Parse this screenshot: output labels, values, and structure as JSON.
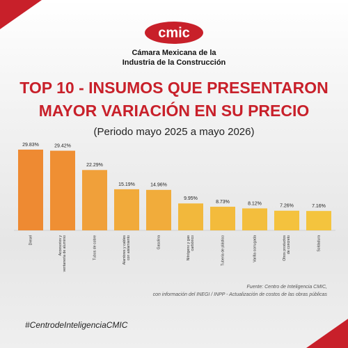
{
  "header": {
    "org_line1": "Cámara Mexicana de la",
    "org_line2": "Industria de la Construcción",
    "logo": "cmic"
  },
  "chart_data": {
    "type": "bar",
    "title_line1": "TOP 10 - INSUMOS QUE PRESENTARON",
    "title_line2": "MAYOR VARIACIÓN EN SU PRECIO",
    "subtitle": "(Periodo mayo 2025 a mayo 2026)",
    "categories": [
      "Diesel",
      "Accesorios y ventanería de aluminio",
      "Tubos de cobre",
      "Alambres y cables con aislamiento",
      "Gasolina",
      "Nitrógeno y gas carbónico",
      "Tubería de plástico",
      "Varilla corrugada",
      "Otros productos de concreto",
      "Soldadura"
    ],
    "values": [
      29.83,
      29.42,
      22.29,
      15.19,
      14.96,
      9.95,
      8.73,
      8.12,
      7.26,
      7.16
    ],
    "value_labels": [
      "29.83%",
      "29.42%",
      "22.29%",
      "15.19%",
      "14.96%",
      "9.95%",
      "8.73%",
      "8.12%",
      "7.26%",
      "7.16%"
    ],
    "colors": [
      "#ee8a32",
      "#ef8f33",
      "#f0a03a",
      "#f1aa3a",
      "#f1ac3b",
      "#f2b83c",
      "#f3bb3c",
      "#f3be3d",
      "#f4c23e",
      "#f4c43e"
    ],
    "source_line1": "Fuente: Centro de Inteligencia CMIC,",
    "source_line2": "con información del INEGI / INPP - Actualización de costos de las obras públicas"
  },
  "footer": {
    "hashtag": "#CentrodeInteligenciaCMIC"
  }
}
